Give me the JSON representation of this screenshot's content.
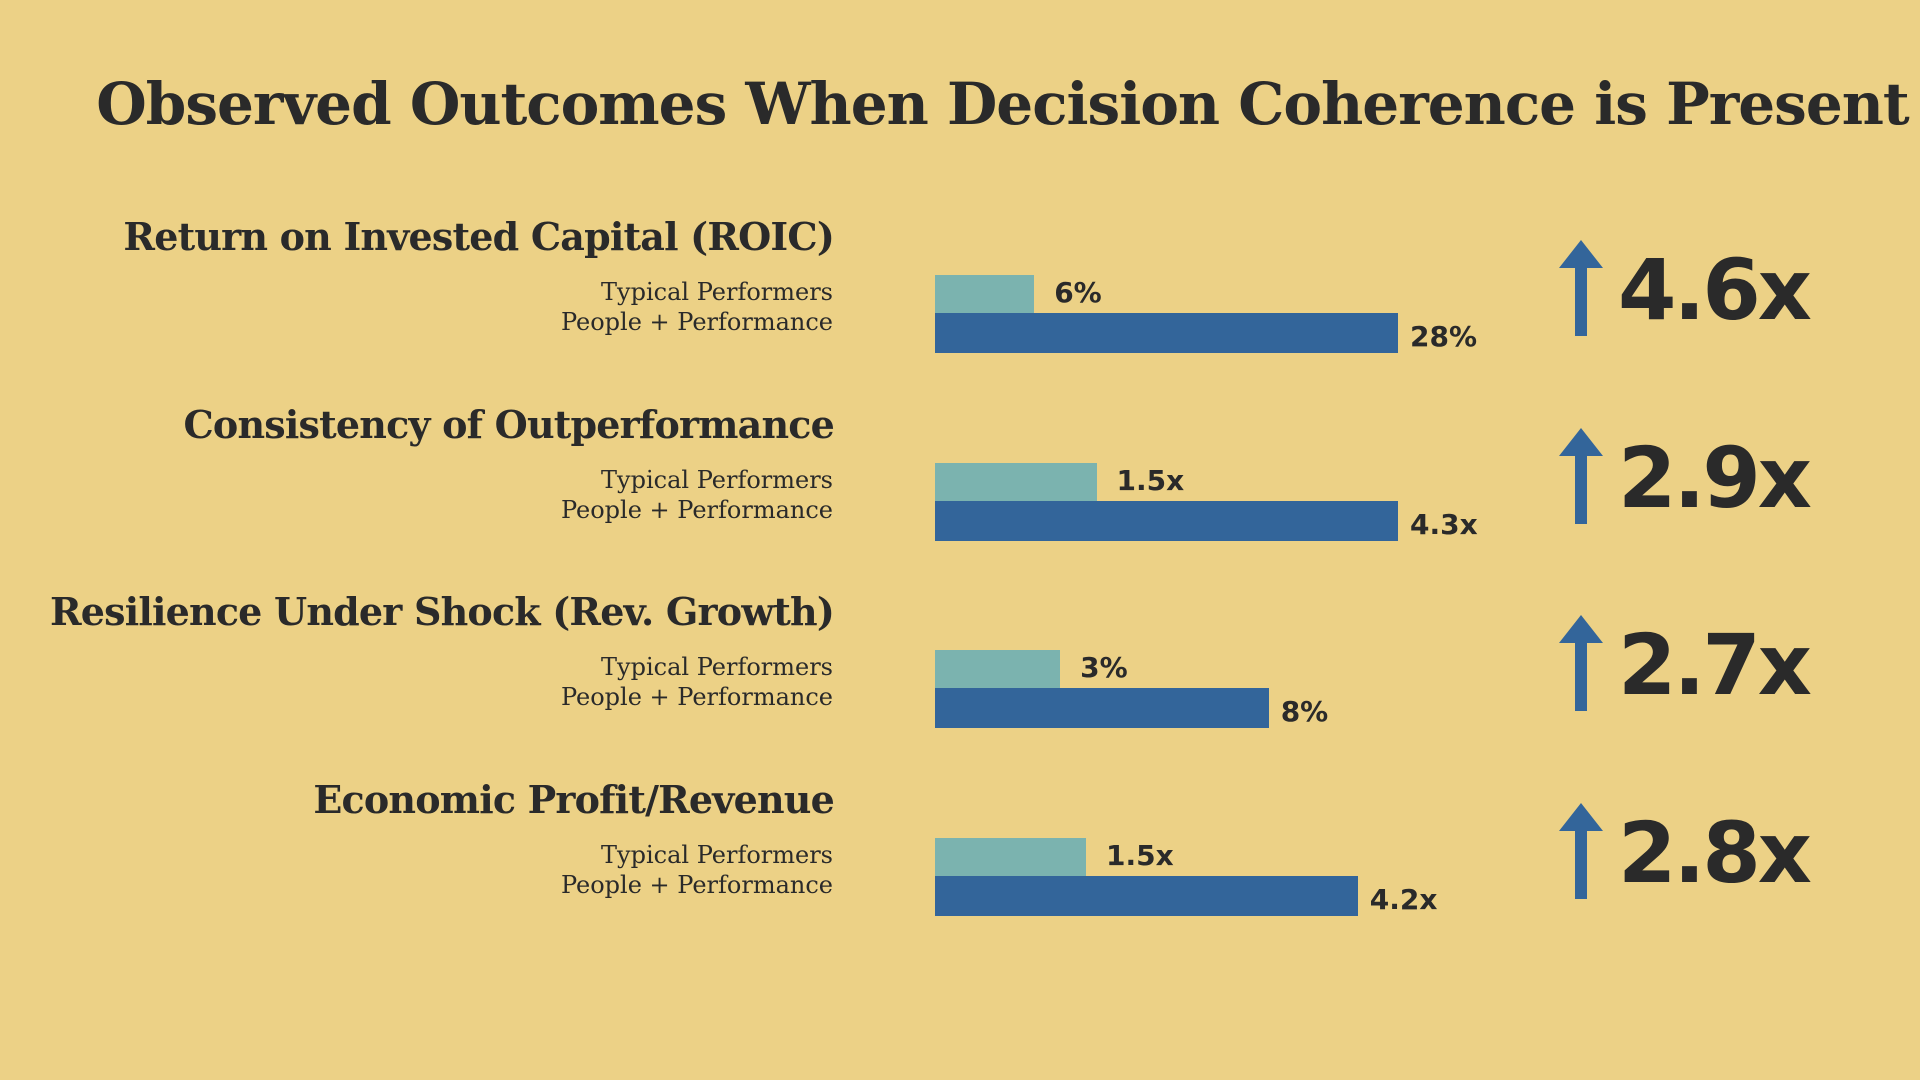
{
  "chart_data": {
    "type": "bar",
    "orientation": "horizontal",
    "title": "Observed Outcomes When Decision Coherence is Present",
    "legend": [
      "Typical Performers",
      "People + Performance"
    ],
    "colors": {
      "typical": "#7BB3AF",
      "people": "#33659A",
      "background": "#ECD186"
    },
    "metrics": [
      {
        "name": "Return on Invested Capital (ROIC)",
        "typical": {
          "value": 6,
          "label": "6%"
        },
        "people": {
          "value": 28,
          "label": "28%"
        },
        "bar_scale_max": 28,
        "multiplier": "4.6x"
      },
      {
        "name": "Consistency of Outperformance",
        "typical": {
          "value": 1.5,
          "label": "1.5x"
        },
        "people": {
          "value": 4.3,
          "label": "4.3x"
        },
        "bar_scale_max": 4.3,
        "multiplier": "2.9x"
      },
      {
        "name": "Resilience Under Shock (Rev. Growth)",
        "typical": {
          "value": 3,
          "label": "3%"
        },
        "people": {
          "value": 8,
          "label": "8%"
        },
        "bar_scale_max": 11.1,
        "multiplier": "2.7x"
      },
      {
        "name": "Economic Profit/Revenue",
        "typical": {
          "value": 1.5,
          "label": "1.5x"
        },
        "people": {
          "value": 4.2,
          "label": "4.2x"
        },
        "bar_scale_max": 4.6,
        "multiplier": "2.8x"
      }
    ]
  }
}
